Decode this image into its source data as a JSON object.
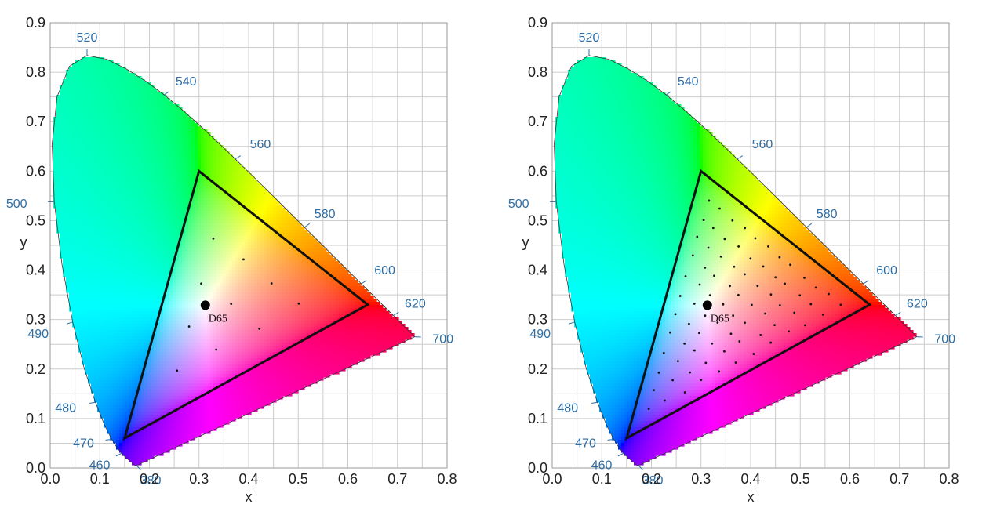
{
  "chart_data": [
    {
      "type": "scatter",
      "xlabel": "x",
      "ylabel": "y",
      "xlim": [
        0,
        0.8
      ],
      "ylim": [
        0,
        0.9
      ],
      "x_ticks": [
        "0.0",
        "0.1",
        "0.2",
        "0.3",
        "0.4",
        "0.5",
        "0.6",
        "0.7",
        "0.8"
      ],
      "y_ticks": [
        "0.0",
        "0.1",
        "0.2",
        "0.3",
        "0.4",
        "0.5",
        "0.6",
        "0.7",
        "0.8",
        "0.9"
      ],
      "grid": true,
      "wavelength_labels": [
        "380",
        "460",
        "470",
        "480",
        "490",
        "500",
        "520",
        "540",
        "560",
        "580",
        "600",
        "620",
        "700"
      ],
      "gamut_triangle": [
        [
          0.3,
          0.6
        ],
        [
          0.64,
          0.33
        ],
        [
          0.15,
          0.06
        ]
      ],
      "white_point": {
        "label": "D65",
        "x": 0.3127,
        "y": 0.329
      },
      "sample_point_density": 6
    },
    {
      "type": "scatter",
      "xlabel": "x",
      "ylabel": "y",
      "xlim": [
        0,
        0.8
      ],
      "ylim": [
        0,
        0.9
      ],
      "x_ticks": [
        "0.0",
        "0.1",
        "0.2",
        "0.3",
        "0.4",
        "0.5",
        "0.6",
        "0.7",
        "0.8"
      ],
      "y_ticks": [
        "0.0",
        "0.1",
        "0.2",
        "0.3",
        "0.4",
        "0.5",
        "0.6",
        "0.7",
        "0.8",
        "0.9"
      ],
      "grid": true,
      "wavelength_labels": [
        "380",
        "460",
        "470",
        "480",
        "490",
        "500",
        "520",
        "540",
        "560",
        "580",
        "600",
        "620",
        "700"
      ],
      "gamut_triangle": [
        [
          0.3,
          0.6
        ],
        [
          0.64,
          0.33
        ],
        [
          0.15,
          0.06
        ]
      ],
      "white_point": {
        "label": "D65",
        "x": 0.3127,
        "y": 0.329
      },
      "sample_point_density": 14
    }
  ],
  "colors": {
    "grid": "#cccccc",
    "axis_text": "#222222",
    "wavelength_text": "#2e6da4",
    "triangle": "#111111",
    "locus_stroke": "#333333"
  }
}
